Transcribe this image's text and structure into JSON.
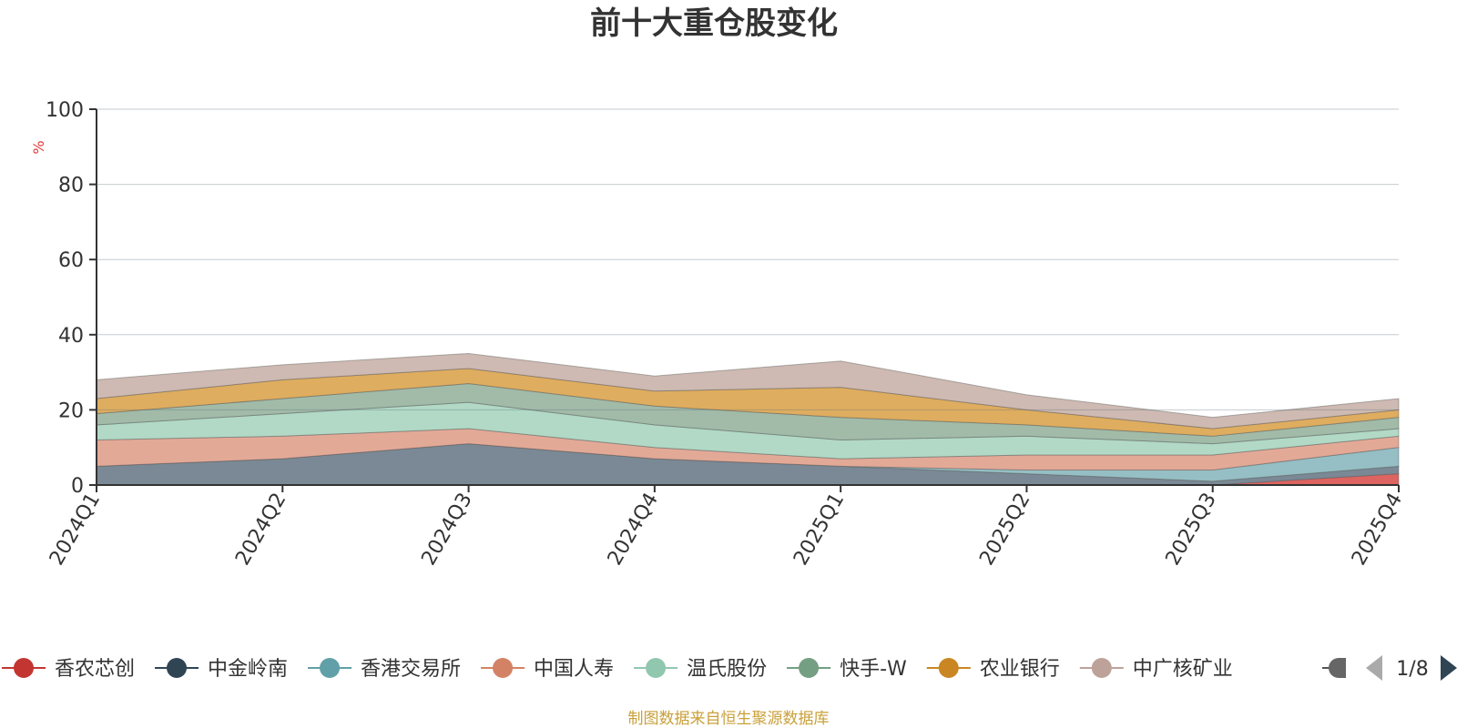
{
  "chart_data": {
    "type": "area",
    "title": "前十大重仓股变化",
    "ylabel": "%",
    "xlabel": "",
    "ylim": [
      0,
      100
    ],
    "yticks": [
      0,
      20,
      40,
      60,
      80,
      100
    ],
    "grid": true,
    "stacked": true,
    "categories": [
      "2024Q1",
      "2024Q2",
      "2024Q3",
      "2024Q4",
      "2025Q1",
      "2025Q2",
      "2025Q3",
      "2025Q4"
    ],
    "series": [
      {
        "name": "香农芯创",
        "color": "#d9534f",
        "values": [
          0,
          0,
          0,
          0,
          0,
          0,
          0,
          3
        ]
      },
      {
        "name": "中金岭南",
        "color": "#6b7c8a",
        "values": [
          5,
          7,
          11,
          7,
          5,
          3,
          1,
          2
        ]
      },
      {
        "name": "香港交易所",
        "color": "#8ab8be",
        "values": [
          0,
          0,
          0,
          0,
          0,
          1,
          3,
          5
        ]
      },
      {
        "name": "中国人寿",
        "color": "#e0a08c",
        "values": [
          7,
          6,
          4,
          3,
          2,
          4,
          4,
          3
        ]
      },
      {
        "name": "温氏股份",
        "color": "#a8d5c0",
        "values": [
          4,
          6,
          7,
          6,
          5,
          5,
          3,
          2
        ]
      },
      {
        "name": "快手-W",
        "color": "#97b49f",
        "values": [
          3,
          4,
          5,
          5,
          6,
          3,
          2,
          3
        ]
      },
      {
        "name": "农业银行",
        "color": "#dba44e",
        "values": [
          4,
          5,
          4,
          4,
          8,
          4,
          2,
          2
        ]
      },
      {
        "name": "中广核矿业",
        "color": "#c9b3aa",
        "values": [
          5,
          4,
          4,
          4,
          7,
          4,
          3,
          3
        ]
      }
    ],
    "remainder_color": "#8fb9c0"
  },
  "legend": {
    "items": [
      {
        "label": "香农芯创",
        "color": "#c23531"
      },
      {
        "label": "中金岭南",
        "color": "#2f4554"
      },
      {
        "label": "香港交易所",
        "color": "#61a0a8"
      },
      {
        "label": "中国人寿",
        "color": "#d48265"
      },
      {
        "label": "温氏股份",
        "color": "#91c7ae"
      },
      {
        "label": "快手-W",
        "color": "#749f83"
      },
      {
        "label": "农业银行",
        "color": "#ca8622"
      },
      {
        "label": "中广核矿业",
        "color": "#bda29a"
      }
    ],
    "page_indicator": "1/8"
  },
  "source": "制图数据来自恒生聚源数据库"
}
